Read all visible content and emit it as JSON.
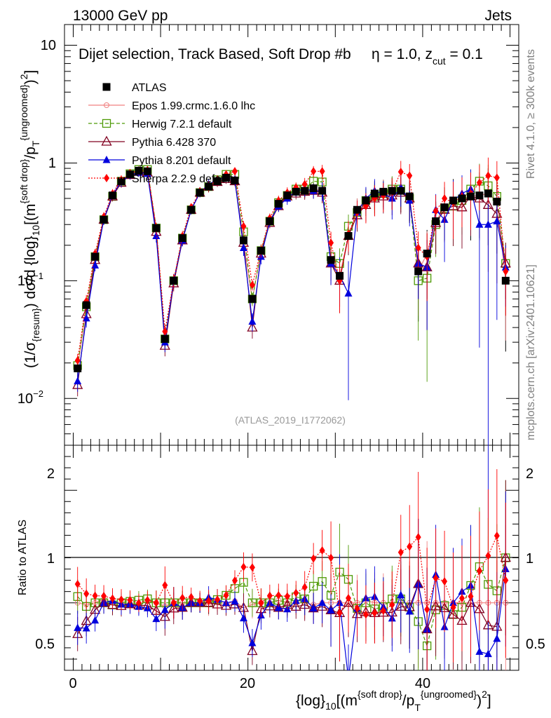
{
  "header": {
    "energy": "13000 GeV pp",
    "group": "Jets"
  },
  "side_labels": {
    "rivet": "Rivet 4.1.0, ≥ 300k events",
    "mcplots": "mcplots.cern.ch [arXiv:2401.10621]"
  },
  "chart_data": [
    {
      "type": "line",
      "panel": "main",
      "title": "Dijet selection, Track Based, Soft Drop #bη = 1.0, z_cut = 0.1",
      "title_main": "Dijet selection, Track Based, Soft Drop #b",
      "title_eta": "η = 1.0, z",
      "title_cut": "cut",
      "title_tail": " = 0.1",
      "analysis_id": "(ATLAS_2019_I1772062)",
      "ylabel": "(1/σ{resum}) dσ/d {log}10[(m{soft drop}/pT{ungroomed})2]",
      "yscale": "log",
      "ylim": [
        0.004,
        15
      ],
      "xlim": [
        -1,
        51
      ],
      "yticks": [
        0.01,
        0.1,
        1,
        10
      ],
      "ytick_labels": {
        "base": "10",
        "exps": [
          "−2",
          "−1",
          "",
          ""
        ],
        "plain": [
          "",
          "",
          "1",
          "10"
        ]
      },
      "x": [
        0.5,
        1.5,
        2.5,
        3.5,
        4.5,
        5.5,
        6.5,
        7.5,
        8.5,
        9.5,
        10.5,
        11.5,
        12.5,
        13.5,
        14.5,
        15.5,
        16.5,
        17.5,
        18.5,
        19.5,
        20.5,
        21.5,
        22.5,
        23.5,
        24.5,
        25.5,
        26.5,
        27.5,
        28.5,
        29.5,
        30.5,
        31.5,
        32.5,
        33.5,
        34.5,
        35.5,
        36.5,
        37.5,
        38.5,
        39.5,
        40.5,
        41.5,
        42.5,
        43.5,
        44.5,
        45.5,
        46.5,
        47.5,
        48.5,
        49.5
      ],
      "series": [
        {
          "name": "ATLAS",
          "color": "#000000",
          "marker": "square-filled",
          "line": "none",
          "values": [
            0.018,
            0.062,
            0.16,
            0.33,
            0.53,
            0.7,
            0.8,
            0.86,
            0.85,
            0.28,
            0.032,
            0.1,
            0.23,
            0.4,
            0.56,
            0.63,
            0.7,
            0.75,
            0.71,
            0.22,
            0.07,
            0.18,
            0.32,
            0.45,
            0.53,
            0.57,
            0.58,
            0.61,
            0.58,
            0.15,
            0.11,
            0.24,
            0.4,
            0.48,
            0.55,
            0.57,
            0.58,
            0.58,
            0.52,
            0.12,
            0.17,
            0.32,
            0.42,
            0.48,
            0.5,
            0.52,
            0.53,
            0.55,
            0.47,
            0.1
          ],
          "errors": [
            0.001,
            0.003,
            0.005,
            0.01,
            0.015,
            0.02,
            0.02,
            0.02,
            0.02,
            0.01,
            0.002,
            0.005,
            0.008,
            0.01,
            0.015,
            0.02,
            0.02,
            0.02,
            0.02,
            0.01,
            0.003,
            0.008,
            0.01,
            0.015,
            0.02,
            0.02,
            0.03,
            0.03,
            0.04,
            0.02,
            0.02,
            0.03,
            0.04,
            0.05,
            0.06,
            0.06,
            0.07,
            0.08,
            0.08,
            0.03,
            0.04,
            0.06,
            0.08,
            0.1,
            0.1,
            0.12,
            0.12,
            0.14,
            0.12,
            0.03
          ]
        },
        {
          "name": "Epos 1.99.crmc.1.6.0 lhc",
          "color": "#f08080",
          "marker": "cross-circle",
          "line": "solid",
          "values": [
            0.018,
            0.061,
            0.16,
            0.34,
            0.53,
            0.7,
            0.79,
            0.85,
            0.86,
            0.28,
            0.031,
            0.1,
            0.23,
            0.4,
            0.56,
            0.62,
            0.71,
            0.74,
            0.72,
            0.21,
            0.069,
            0.18,
            0.32,
            0.46,
            0.53,
            0.57,
            0.58,
            0.6,
            0.58,
            0.15,
            0.11,
            0.24,
            0.4,
            0.49,
            0.55,
            0.57,
            0.58,
            0.58,
            0.52,
            0.12,
            0.17,
            0.32,
            0.42,
            0.48,
            0.5,
            0.52,
            0.53,
            0.55,
            0.47,
            0.1
          ]
        },
        {
          "name": "Herwig 7.2.1 default",
          "color": "#4e9a06",
          "marker": "square-open",
          "line": "dashed",
          "values": [
            0.019,
            0.06,
            0.16,
            0.33,
            0.52,
            0.7,
            0.81,
            0.88,
            0.88,
            0.28,
            0.032,
            0.1,
            0.23,
            0.4,
            0.56,
            0.63,
            0.72,
            0.8,
            0.8,
            0.26,
            0.07,
            0.18,
            0.32,
            0.46,
            0.53,
            0.6,
            0.6,
            0.7,
            0.69,
            0.16,
            0.14,
            0.29,
            0.38,
            0.48,
            0.52,
            0.55,
            0.6,
            0.6,
            0.5,
            0.1,
            0.105,
            0.3,
            0.41,
            0.43,
            0.48,
            0.6,
            0.7,
            0.64,
            0.52,
            0.14
          ]
        },
        {
          "name": "Pythia 6.428 370",
          "color": "#800020",
          "marker": "triangle-open",
          "line": "solid",
          "values": [
            0.013,
            0.052,
            0.15,
            0.33,
            0.52,
            0.68,
            0.79,
            0.84,
            0.83,
            0.26,
            0.028,
            0.095,
            0.22,
            0.4,
            0.56,
            0.63,
            0.69,
            0.73,
            0.7,
            0.21,
            0.04,
            0.17,
            0.31,
            0.43,
            0.52,
            0.55,
            0.57,
            0.58,
            0.56,
            0.14,
            0.1,
            0.24,
            0.36,
            0.44,
            0.5,
            0.52,
            0.53,
            0.56,
            0.5,
            0.14,
            0.13,
            0.31,
            0.4,
            0.43,
            0.42,
            0.52,
            0.5,
            0.44,
            0.37,
            0.14
          ]
        },
        {
          "name": "Pythia 8.201 default",
          "color": "#0000dd",
          "marker": "triangle-filled",
          "line": "solid",
          "values": [
            0.014,
            0.048,
            0.135,
            0.33,
            0.54,
            0.69,
            0.79,
            0.83,
            0.81,
            0.24,
            0.03,
            0.1,
            0.22,
            0.4,
            0.56,
            0.66,
            0.72,
            0.75,
            0.72,
            0.19,
            0.045,
            0.16,
            0.32,
            0.43,
            0.5,
            0.58,
            0.6,
            0.58,
            0.58,
            0.14,
            0.11,
            0.078,
            0.38,
            0.5,
            0.58,
            0.55,
            0.5,
            0.62,
            0.48,
            0.14,
            0.13,
            0.4,
            0.33,
            0.48,
            0.55,
            0.6,
            0.3,
            0.3,
            0.32,
            0.13
          ]
        },
        {
          "name": "Sherpa 2.2.9 default",
          "color": "#ff0000",
          "marker": "diamond-filled",
          "line": "dotted",
          "values": [
            0.021,
            0.067,
            0.17,
            0.35,
            0.55,
            0.72,
            0.82,
            0.86,
            0.87,
            0.28,
            0.037,
            0.1,
            0.24,
            0.42,
            0.57,
            0.64,
            0.72,
            0.8,
            0.85,
            0.29,
            0.092,
            0.18,
            0.34,
            0.48,
            0.56,
            0.62,
            0.66,
            0.85,
            0.85,
            0.21,
            0.1,
            0.25,
            0.38,
            0.43,
            0.5,
            0.53,
            0.57,
            0.84,
            0.78,
            0.19,
            0.16,
            0.39,
            0.5,
            0.46,
            0.52,
            0.55,
            0.68,
            0.78,
            0.75,
            0.12
          ]
        }
      ]
    },
    {
      "type": "line",
      "panel": "ratio",
      "ylabel": "Ratio to ATLAS",
      "ylim": [
        0.4,
        2.4
      ],
      "yticks": [
        0.5,
        1,
        2
      ],
      "ytick_labels": [
        "0.5",
        "1",
        "2"
      ],
      "xlim": [
        -1,
        51
      ],
      "xticks": [
        0,
        20,
        40
      ],
      "xtick_labels": [
        "0",
        "20",
        "40"
      ],
      "xlabel": "{log}10[(m{soft drop}/pT{ungroomed})2]",
      "reference_line": 1
    }
  ],
  "axis_text": {
    "main_ylabel": {
      "prefix": "(1/σ",
      "sub1": "{resum}",
      "mid": ") dσ/d {log}",
      "sub2": "10",
      "mid2": "[(m",
      "sup1": "{soft drop}",
      "mid3": "/p",
      "sub3": "T",
      "sup2": "{ungroomed}",
      "end": ")",
      "sup3": "2",
      "close": "]"
    },
    "xlabel": {
      "prefix": "{log}",
      "sub1": "10",
      "mid": "[(m",
      "sup1": "{soft drop}",
      "mid2": "/p",
      "sub2": "T",
      "sup2": "{ungroomed}",
      "end": ")",
      "sup3": "2",
      "close": "]"
    }
  }
}
